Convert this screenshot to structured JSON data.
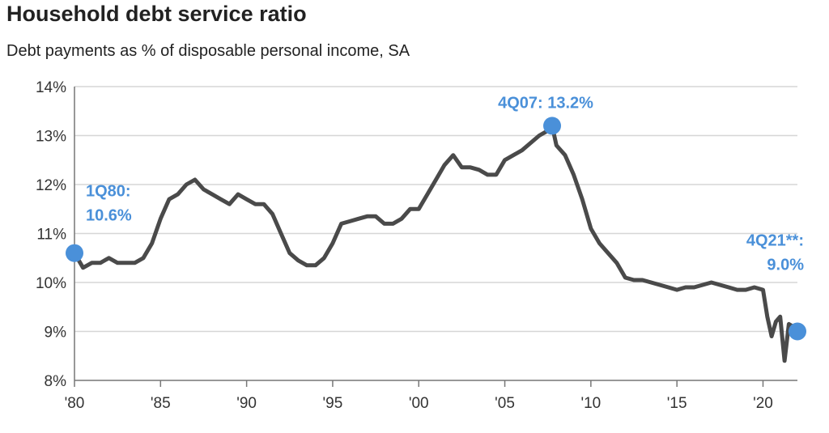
{
  "chart_data": {
    "type": "line",
    "title": "Household debt service ratio",
    "subtitle": "Debt payments as % of disposable personal income, SA",
    "xlabel": "",
    "ylabel": "",
    "xlim": [
      1980,
      2022
    ],
    "ylim": [
      8,
      14
    ],
    "y_ticks": [
      "8%",
      "9%",
      "10%",
      "11%",
      "12%",
      "13%",
      "14%"
    ],
    "x_ticks": [
      {
        "year": 1980,
        "label": "'80"
      },
      {
        "year": 1985,
        "label": "'85"
      },
      {
        "year": 1990,
        "label": "'90"
      },
      {
        "year": 1995,
        "label": "'95"
      },
      {
        "year": 2000,
        "label": "'00"
      },
      {
        "year": 2005,
        "label": "'05"
      },
      {
        "year": 2010,
        "label": "'10"
      },
      {
        "year": 2015,
        "label": "'15"
      },
      {
        "year": 2020,
        "label": "'20"
      }
    ],
    "grid": true,
    "line_color": "#4a4a4a",
    "accent_color": "#4a90d9",
    "series": [
      {
        "x": [
          1980.0,
          1980.5,
          1981.0,
          1981.5,
          1982.0,
          1982.5,
          1983.0,
          1983.5,
          1984.0,
          1984.5,
          1985.0,
          1985.5,
          1986.0,
          1986.5,
          1987.0,
          1987.5,
          1988.0,
          1988.5,
          1989.0,
          1989.5,
          1990.0,
          1990.5,
          1991.0,
          1991.5,
          1992.0,
          1992.5,
          1993.0,
          1993.5,
          1994.0,
          1994.5,
          1995.0,
          1995.5,
          1996.0,
          1996.5,
          1997.0,
          1997.5,
          1998.0,
          1998.5,
          1999.0,
          1999.5,
          2000.0,
          2000.5,
          2001.0,
          2001.5,
          2002.0,
          2002.5,
          2003.0,
          2003.5,
          2004.0,
          2004.5,
          2005.0,
          2005.5,
          2006.0,
          2006.5,
          2007.0,
          2007.5,
          2007.75,
          2008.0,
          2008.5,
          2009.0,
          2009.5,
          2010.0,
          2010.5,
          2011.0,
          2011.5,
          2012.0,
          2012.5,
          2013.0,
          2013.5,
          2014.0,
          2014.5,
          2015.0,
          2015.5,
          2016.0,
          2016.5,
          2017.0,
          2017.5,
          2018.0,
          2018.5,
          2019.0,
          2019.5,
          2020.0,
          2020.25,
          2020.5,
          2020.75,
          2021.0,
          2021.25,
          2021.5,
          2021.75,
          2022.0
        ],
        "values": [
          10.6,
          10.3,
          10.4,
          10.4,
          10.5,
          10.4,
          10.4,
          10.4,
          10.5,
          10.8,
          11.3,
          11.7,
          11.8,
          12.0,
          12.1,
          11.9,
          11.8,
          11.7,
          11.6,
          11.8,
          11.7,
          11.6,
          11.6,
          11.4,
          11.0,
          10.6,
          10.45,
          10.35,
          10.35,
          10.5,
          10.8,
          11.2,
          11.25,
          11.3,
          11.35,
          11.35,
          11.2,
          11.2,
          11.3,
          11.5,
          11.5,
          11.8,
          12.1,
          12.4,
          12.6,
          12.35,
          12.35,
          12.3,
          12.2,
          12.2,
          12.5,
          12.6,
          12.7,
          12.85,
          13.0,
          13.1,
          13.2,
          12.8,
          12.6,
          12.2,
          11.7,
          11.1,
          10.8,
          10.6,
          10.4,
          10.1,
          10.05,
          10.05,
          10.0,
          9.95,
          9.9,
          9.85,
          9.9,
          9.9,
          9.95,
          10.0,
          9.95,
          9.9,
          9.85,
          9.85,
          9.9,
          9.85,
          9.3,
          8.9,
          9.2,
          9.3,
          8.4,
          9.15,
          9.1,
          9.0
        ]
      }
    ],
    "annotations": [
      {
        "x": 1980.0,
        "y": 10.6,
        "lines": [
          "1Q80:",
          "10.6%"
        ]
      },
      {
        "x": 2007.75,
        "y": 13.2,
        "lines": [
          "4Q07: 13.2%"
        ]
      },
      {
        "x": 2022.0,
        "y": 9.0,
        "lines": [
          "4Q21**:",
          "9.0%"
        ]
      }
    ]
  }
}
